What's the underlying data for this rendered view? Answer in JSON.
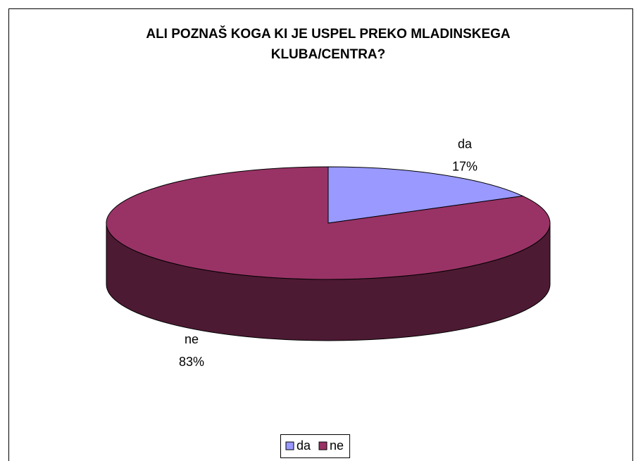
{
  "chart_data": {
    "type": "pie3d",
    "title": [
      "ALI POZNAŠ KOGA KI JE USPEL PREKO MLADINSKEGA",
      "KLUBA/CENTRA?"
    ],
    "categories": [
      "da",
      "ne"
    ],
    "values": [
      17,
      83
    ],
    "value_labels": [
      "17%",
      "83%"
    ],
    "colors": [
      "#9999ff",
      "#993366"
    ],
    "legend": "bottom"
  }
}
